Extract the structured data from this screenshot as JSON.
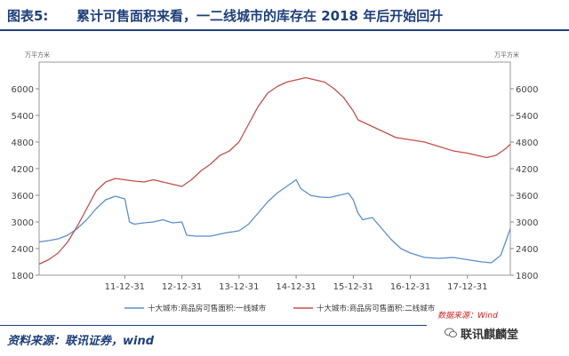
{
  "header": {
    "label": "图表5:",
    "title": "累计可售面积来看，一二线城市的库存在 2018 年后开始回升"
  },
  "source": "资料来源：联讯证券，wind",
  "watermark": {
    "data_source": "数据来源：Wind",
    "account": "联讯麒麟堂"
  },
  "chart_data": {
    "type": "line",
    "left_unit": "万平方米",
    "right_unit": "万平方米",
    "x_ticks": [
      "11-12-31",
      "12-12-31",
      "13-12-31",
      "14-12-31",
      "15-12-31",
      "16-12-31",
      "17-12-31"
    ],
    "x_range": [
      "2010-06",
      "2018-09"
    ],
    "y_left": {
      "range": [
        1800,
        6600
      ],
      "ticks": [
        1800,
        2400,
        3000,
        3600,
        4200,
        4800,
        5400,
        6000
      ]
    },
    "y_right": {
      "range": [
        1800,
        6600
      ],
      "ticks": [
        1800,
        2400,
        3000,
        3600,
        4200,
        4800,
        5400,
        6000
      ]
    },
    "grid": false,
    "legend_position": "bottom",
    "series": [
      {
        "name": "十大城市:商品房可售面积:一线城市",
        "color": "#5b8fc9",
        "axis": "left",
        "points": [
          [
            "2010-06",
            2550
          ],
          [
            "2010-08",
            2580
          ],
          [
            "2010-10",
            2620
          ],
          [
            "2010-12",
            2700
          ],
          [
            "2011-02",
            2850
          ],
          [
            "2011-04",
            3050
          ],
          [
            "2011-06",
            3300
          ],
          [
            "2011-08",
            3500
          ],
          [
            "2011-10",
            3580
          ],
          [
            "2011-12",
            3520
          ],
          [
            "2012-01",
            3000
          ],
          [
            "2012-02",
            2950
          ],
          [
            "2012-04",
            2980
          ],
          [
            "2012-06",
            3000
          ],
          [
            "2012-08",
            3050
          ],
          [
            "2012-10",
            2980
          ],
          [
            "2012-12",
            3000
          ],
          [
            "2013-01",
            2700
          ],
          [
            "2013-03",
            2680
          ],
          [
            "2013-06",
            2680
          ],
          [
            "2013-09",
            2750
          ],
          [
            "2013-12",
            2800
          ],
          [
            "2014-02",
            2950
          ],
          [
            "2014-04",
            3200
          ],
          [
            "2014-06",
            3450
          ],
          [
            "2014-08",
            3650
          ],
          [
            "2014-10",
            3800
          ],
          [
            "2014-12",
            3950
          ],
          [
            "2015-01",
            3750
          ],
          [
            "2015-03",
            3600
          ],
          [
            "2015-05",
            3560
          ],
          [
            "2015-07",
            3550
          ],
          [
            "2015-09",
            3600
          ],
          [
            "2015-11",
            3650
          ],
          [
            "2015-12",
            3500
          ],
          [
            "2016-01",
            3200
          ],
          [
            "2016-02",
            3050
          ],
          [
            "2016-04",
            3100
          ],
          [
            "2016-06",
            2850
          ],
          [
            "2016-08",
            2600
          ],
          [
            "2016-10",
            2400
          ],
          [
            "2016-12",
            2300
          ],
          [
            "2017-03",
            2200
          ],
          [
            "2017-06",
            2180
          ],
          [
            "2017-09",
            2200
          ],
          [
            "2017-12",
            2150
          ],
          [
            "2018-03",
            2100
          ],
          [
            "2018-05",
            2080
          ],
          [
            "2018-07",
            2250
          ],
          [
            "2018-09",
            2850
          ]
        ]
      },
      {
        "name": "十大城市:商品房可售面积:二线城市",
        "color": "#c0504d",
        "axis": "right",
        "points": [
          [
            "2010-06",
            2050
          ],
          [
            "2010-08",
            2150
          ],
          [
            "2010-10",
            2300
          ],
          [
            "2010-12",
            2550
          ],
          [
            "2011-02",
            2900
          ],
          [
            "2011-04",
            3300
          ],
          [
            "2011-06",
            3700
          ],
          [
            "2011-08",
            3900
          ],
          [
            "2011-10",
            3980
          ],
          [
            "2011-12",
            3950
          ],
          [
            "2012-02",
            3920
          ],
          [
            "2012-04",
            3900
          ],
          [
            "2012-06",
            3950
          ],
          [
            "2012-08",
            3900
          ],
          [
            "2012-10",
            3850
          ],
          [
            "2012-12",
            3800
          ],
          [
            "2013-02",
            3950
          ],
          [
            "2013-04",
            4150
          ],
          [
            "2013-06",
            4300
          ],
          [
            "2013-08",
            4500
          ],
          [
            "2013-10",
            4600
          ],
          [
            "2013-12",
            4800
          ],
          [
            "2014-02",
            5200
          ],
          [
            "2014-04",
            5600
          ],
          [
            "2014-06",
            5900
          ],
          [
            "2014-08",
            6050
          ],
          [
            "2014-10",
            6150
          ],
          [
            "2014-12",
            6200
          ],
          [
            "2015-02",
            6250
          ],
          [
            "2015-04",
            6200
          ],
          [
            "2015-06",
            6150
          ],
          [
            "2015-08",
            6000
          ],
          [
            "2015-10",
            5800
          ],
          [
            "2015-12",
            5500
          ],
          [
            "2016-01",
            5300
          ],
          [
            "2016-03",
            5200
          ],
          [
            "2016-05",
            5100
          ],
          [
            "2016-07",
            5000
          ],
          [
            "2016-09",
            4900
          ],
          [
            "2016-12",
            4850
          ],
          [
            "2017-03",
            4800
          ],
          [
            "2017-06",
            4700
          ],
          [
            "2017-09",
            4600
          ],
          [
            "2017-12",
            4550
          ],
          [
            "2018-02",
            4500
          ],
          [
            "2018-04",
            4450
          ],
          [
            "2018-06",
            4500
          ],
          [
            "2018-08",
            4650
          ],
          [
            "2018-09",
            4750
          ]
        ]
      }
    ]
  }
}
